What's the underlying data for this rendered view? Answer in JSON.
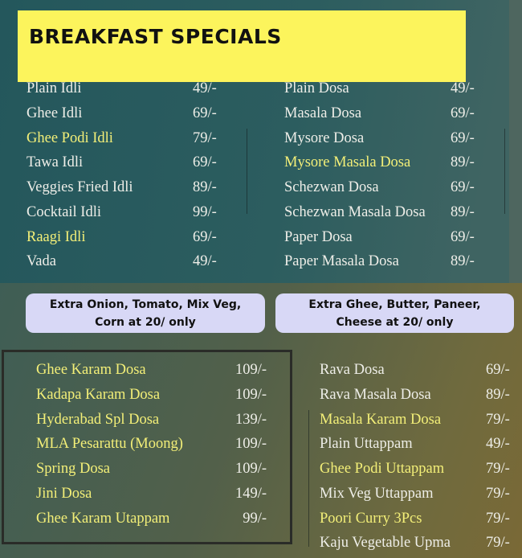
{
  "title": "BREAKFAST SPECIALS",
  "colors": {
    "title_bg": "#fcf45c",
    "highlight_text": "#f3ef78",
    "pill_bg": "#d8d8f6"
  },
  "top_left": [
    {
      "name": "Plain Idli",
      "price": "49/-",
      "highlight": false
    },
    {
      "name": "Ghee Idli",
      "price": "69/-",
      "highlight": false
    },
    {
      "name": "Ghee Podi Idli",
      "price": "79/-",
      "highlight": true
    },
    {
      "name": "Tawa Idli",
      "price": "69/-",
      "highlight": false
    },
    {
      "name": "Veggies Fried Idli",
      "price": "89/-",
      "highlight": false
    },
    {
      "name": "Cocktail Idli",
      "price": "99/-",
      "highlight": false
    },
    {
      "name": "Raagi Idli",
      "price": "69/-",
      "highlight": true
    },
    {
      "name": "Vada",
      "price": "49/-",
      "highlight": false
    }
  ],
  "top_right": [
    {
      "name": "Plain Dosa",
      "price": "49/-",
      "highlight": false
    },
    {
      "name": "Masala Dosa",
      "price": "69/-",
      "highlight": false
    },
    {
      "name": "Mysore Dosa",
      "price": "69/-",
      "highlight": false
    },
    {
      "name": "Mysore Masala Dosa",
      "price": "89/-",
      "highlight": true
    },
    {
      "name": "Schezwan Dosa",
      "price": "69/-",
      "highlight": false
    },
    {
      "name": "Schezwan Masala Dosa",
      "price": "89/-",
      "highlight": false
    },
    {
      "name": "Paper Dosa",
      "price": "69/-",
      "highlight": false
    },
    {
      "name": "Paper Masala Dosa",
      "price": "89/-",
      "highlight": false
    }
  ],
  "extras": [
    {
      "line1": "Extra Onion, Tomato, Mix Veg,",
      "line2": "Corn at 20/ only"
    },
    {
      "line1": "Extra Ghee, Butter, Paneer,",
      "line2": "Cheese at 20/ only"
    }
  ],
  "bottom_left": [
    {
      "name": "Ghee Karam Dosa",
      "price": "109/-",
      "highlight": true
    },
    {
      "name": "Kadapa Karam Dosa",
      "price": "109/-",
      "highlight": true
    },
    {
      "name": "Hyderabad Spl Dosa",
      "price": "139/-",
      "highlight": true
    },
    {
      "name": "MLA Pesarattu (Moong)",
      "price": "109/-",
      "highlight": true
    },
    {
      "name": "Spring Dosa",
      "price": "109/-",
      "highlight": true
    },
    {
      "name": "Jini Dosa",
      "price": "149/-",
      "highlight": true
    },
    {
      "name": "Ghee Karam Utappam",
      "price": "99/-",
      "highlight": true
    }
  ],
  "bottom_right": [
    {
      "name": "Rava Dosa",
      "price": "69/-",
      "highlight": false
    },
    {
      "name": "Rava Masala Dosa",
      "price": "89/-",
      "highlight": false
    },
    {
      "name": "Masala Karam Dosa",
      "price": "79/-",
      "highlight": true
    },
    {
      "name": "Plain Uttappam",
      "price": "49/-",
      "highlight": false
    },
    {
      "name": "Ghee Podi Uttappam",
      "price": "79/-",
      "highlight": true
    },
    {
      "name": "Mix Veg Uttappam",
      "price": "79/-",
      "highlight": false
    },
    {
      "name": "Poori Curry 3Pcs",
      "price": "79/-",
      "highlight": true
    },
    {
      "name": "Kaju Vegetable Upma",
      "price": "79/-",
      "highlight": false
    }
  ]
}
